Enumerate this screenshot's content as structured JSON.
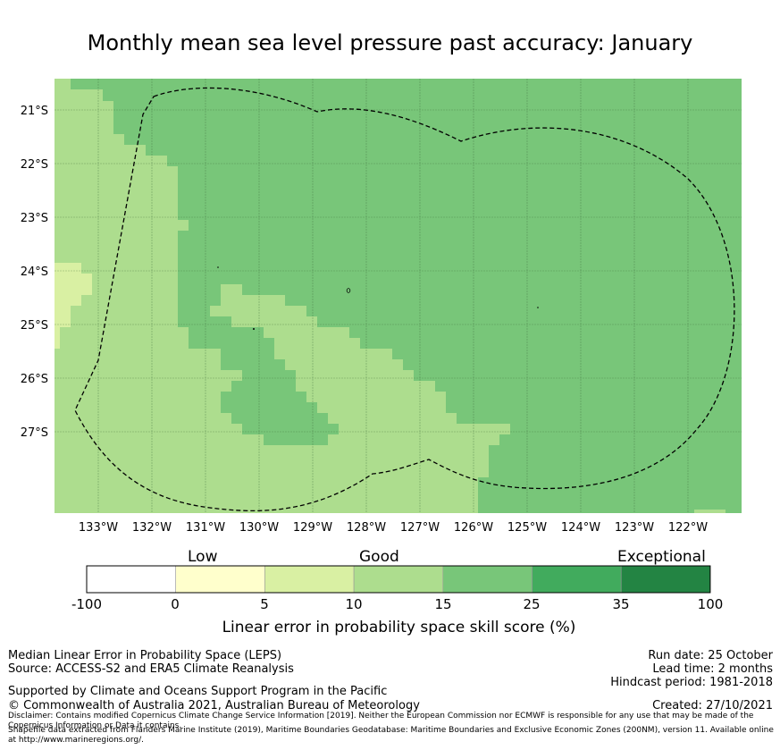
{
  "title": "Monthly mean sea level pressure past accuracy: January",
  "map": {
    "lat_labels": [
      "21°S",
      "22°S",
      "23°S",
      "24°S",
      "25°S",
      "26°S",
      "27°S"
    ],
    "lon_labels": [
      "133°W",
      "132°W",
      "131°W",
      "130°W",
      "129°W",
      "128°W",
      "127°W",
      "126°W",
      "125°W",
      "124°W",
      "123°W",
      "122°W"
    ],
    "lon_range": [
      -133.8,
      -121.0
    ],
    "lat_range": [
      -28.5,
      -20.4
    ]
  },
  "colorbar": {
    "category_labels": [
      "Low",
      "Good",
      "Exceptional"
    ],
    "ticks": [
      "-100",
      "0",
      "5",
      "10",
      "15",
      "25",
      "35",
      "100"
    ],
    "colors": [
      "#ffffff",
      "#ffffcc",
      "#d9f0a3",
      "#addd8e",
      "#78c679",
      "#41ab5d",
      "#238443"
    ],
    "title": "Linear error in probability space skill score (%)"
  },
  "footer": {
    "metric": "Median Linear Error in Probability Space (LEPS)",
    "source": "Source: ACCESS-S2 and ERA5 Climate Reanalysis",
    "support": "Supported by Climate and Oceans Support Program in the Pacific",
    "copyright": "© Commonwealth of Australia 2021, Australian Bureau of Meteorology",
    "disclaimer": "Disclaimer: Contains modified Copernicus Climate Change Service Information [2019]. Neither the European Commission nor ECMWF is responsible for any use that may be made of the Copernicus Information or Data it contains.",
    "shapefile": "Shapefile data extracted from Flanders Marine Institute (2019), Maritime Boundaries Geodatabase: Maritime Boundaries and Exclusive Economic Zones (200NM), version 11. Available online at http://www.marineregions.org/.",
    "run_date": "Run date: 25 October",
    "lead_time": "Lead time: 2 months",
    "hindcast": "Hindcast period: 1981-2018",
    "created": "Created: 27/10/2021"
  }
}
